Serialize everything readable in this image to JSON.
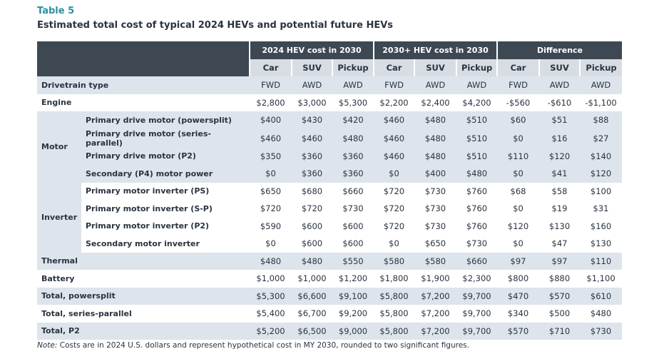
{
  "table_label": "Table 5",
  "table_title": "Estimated total cost of typical 2024 HEVs and potential future HEVs",
  "groups": [
    "2024 HEV cost in 2030",
    "2030+ HEV cost in 2030",
    "Difference"
  ],
  "columns": [
    "Car",
    "SUV",
    "Pickup",
    "Car",
    "SUV",
    "Pickup",
    "Car",
    "SUV",
    "Pickup"
  ],
  "rows": {
    "drivetrain": {
      "label": "Drivetrain type",
      "values": [
        "FWD",
        "AWD",
        "AWD",
        "FWD",
        "AWD",
        "AWD",
        "FWD",
        "AWD",
        "AWD"
      ]
    },
    "engine": {
      "label": "Engine",
      "values": [
        "$2,800",
        "$3,000",
        "$5,300",
        "$2,200",
        "$2,400",
        "$4,200",
        "-$560",
        "-$610",
        "-$1,100"
      ]
    },
    "motor": {
      "group": "Motor",
      "items": [
        {
          "label": "Primary drive motor (powersplit)",
          "values": [
            "$400",
            "$430",
            "$420",
            "$460",
            "$480",
            "$510",
            "$60",
            "$51",
            "$88"
          ]
        },
        {
          "label": "Primary drive motor (series-parallel)",
          "values": [
            "$460",
            "$460",
            "$480",
            "$460",
            "$480",
            "$510",
            "$0",
            "$16",
            "$27"
          ]
        },
        {
          "label": "Primary drive motor (P2)",
          "values": [
            "$350",
            "$360",
            "$360",
            "$460",
            "$480",
            "$510",
            "$110",
            "$120",
            "$140"
          ]
        },
        {
          "label": "Secondary (P4) motor power",
          "values": [
            "$0",
            "$360",
            "$360",
            "$0",
            "$400",
            "$480",
            "$0",
            "$41",
            "$120"
          ]
        }
      ]
    },
    "inverter": {
      "group": "Inverter",
      "items": [
        {
          "label": "Primary motor inverter (PS)",
          "values": [
            "$650",
            "$680",
            "$660",
            "$720",
            "$730",
            "$760",
            "$68",
            "$58",
            "$100"
          ]
        },
        {
          "label": "Primary motor inverter (S-P)",
          "values": [
            "$720",
            "$720",
            "$730",
            "$720",
            "$730",
            "$760",
            "$0",
            "$19",
            "$31"
          ]
        },
        {
          "label": "Primary motor inverter (P2)",
          "values": [
            "$590",
            "$600",
            "$600",
            "$720",
            "$730",
            "$760",
            "$120",
            "$130",
            "$160"
          ]
        },
        {
          "label": "Secondary motor inverter",
          "values": [
            "$0",
            "$600",
            "$600",
            "$0",
            "$650",
            "$730",
            "$0",
            "$47",
            "$130"
          ]
        }
      ]
    },
    "thermal": {
      "label": "Thermal",
      "values": [
        "$480",
        "$480",
        "$550",
        "$580",
        "$580",
        "$660",
        "$97",
        "$97",
        "$110"
      ]
    },
    "battery": {
      "label": "Battery",
      "values": [
        "$1,000",
        "$1,000",
        "$1,200",
        "$1,800",
        "$1,900",
        "$2,300",
        "$800",
        "$880",
        "$1,100"
      ]
    },
    "total_powersplit": {
      "label": "Total, powersplit",
      "values": [
        "$5,300",
        "$6,600",
        "$9,100",
        "$5,800",
        "$7,200",
        "$9,700",
        "$470",
        "$570",
        "$610"
      ]
    },
    "total_series_parallel": {
      "label": "Total, series-parallel",
      "values": [
        "$5,400",
        "$6,700",
        "$9,200",
        "$5,800",
        "$7,200",
        "$9,700",
        "$340",
        "$500",
        "$480"
      ]
    },
    "total_p2": {
      "label": "Total, P2",
      "values": [
        "$5,200",
        "$6,500",
        "$9,000",
        "$5,800",
        "$7,200",
        "$9,700",
        "$570",
        "$710",
        "$730"
      ]
    }
  },
  "note_prefix": "Note:",
  "note_text": " Costs are in 2024 U.S. dollars and represent hypothetical cost in MY 2030, rounded to two significant figures."
}
